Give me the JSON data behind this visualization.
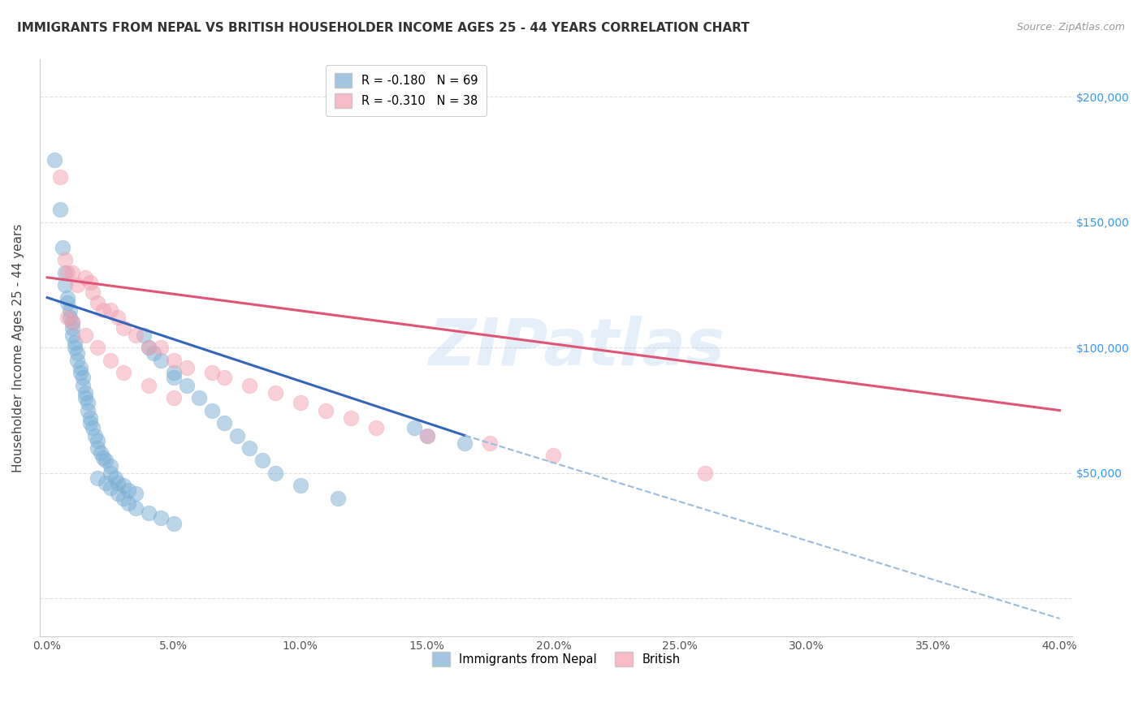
{
  "title": "IMMIGRANTS FROM NEPAL VS BRITISH HOUSEHOLDER INCOME AGES 25 - 44 YEARS CORRELATION CHART",
  "source": "Source: ZipAtlas.com",
  "ylabel": "Householder Income Ages 25 - 44 years",
  "ytick_vals": [
    0,
    50000,
    100000,
    150000,
    200000
  ],
  "ytick_labels_right": [
    "",
    "$50,000",
    "$100,000",
    "$150,000",
    "$200,000"
  ],
  "legend_r1": "R = -0.180",
  "legend_n1": "N = 69",
  "legend_r2": "R = -0.310",
  "legend_n2": "N = 38",
  "nepal_color": "#7BAFD4",
  "british_color": "#F4A0B0",
  "nepal_edge_color": "#5588BB",
  "british_edge_color": "#E07090",
  "nepal_line_color": "#3366BB",
  "british_line_color": "#E05575",
  "dashed_line_color": "#99BBDD",
  "watermark_text": "ZIPatlas",
  "nepal_x": [
    0.3,
    0.5,
    0.6,
    0.7,
    0.7,
    0.8,
    0.8,
    0.9,
    0.9,
    1.0,
    1.0,
    1.0,
    1.1,
    1.1,
    1.2,
    1.2,
    1.3,
    1.3,
    1.4,
    1.4,
    1.5,
    1.5,
    1.6,
    1.6,
    1.7,
    1.7,
    1.8,
    1.9,
    2.0,
    2.0,
    2.1,
    2.2,
    2.3,
    2.5,
    2.5,
    2.7,
    2.8,
    3.0,
    3.2,
    3.5,
    3.8,
    4.0,
    4.2,
    4.5,
    5.0,
    5.0,
    5.5,
    6.0,
    6.5,
    7.0,
    7.5,
    8.0,
    8.5,
    9.0,
    10.0,
    11.5,
    14.5,
    15.0,
    16.5,
    2.0,
    2.3,
    2.5,
    2.8,
    3.0,
    3.2,
    3.5,
    4.0,
    4.5,
    5.0
  ],
  "nepal_y": [
    175000,
    155000,
    140000,
    130000,
    125000,
    120000,
    118000,
    115000,
    112000,
    110000,
    108000,
    105000,
    102000,
    100000,
    98000,
    95000,
    92000,
    90000,
    88000,
    85000,
    82000,
    80000,
    78000,
    75000,
    72000,
    70000,
    68000,
    65000,
    63000,
    60000,
    58000,
    56000,
    55000,
    53000,
    50000,
    48000,
    46000,
    45000,
    43000,
    42000,
    105000,
    100000,
    98000,
    95000,
    90000,
    88000,
    85000,
    80000,
    75000,
    70000,
    65000,
    60000,
    55000,
    50000,
    45000,
    40000,
    68000,
    65000,
    62000,
    48000,
    46000,
    44000,
    42000,
    40000,
    38000,
    36000,
    34000,
    32000,
    30000
  ],
  "british_x": [
    0.5,
    0.7,
    0.8,
    1.0,
    1.2,
    1.5,
    1.7,
    1.8,
    2.0,
    2.2,
    2.5,
    2.8,
    3.0,
    3.5,
    4.0,
    4.5,
    5.0,
    5.5,
    6.5,
    7.0,
    8.0,
    9.0,
    10.0,
    11.0,
    12.0,
    13.0,
    15.0,
    17.5,
    20.0,
    26.0,
    0.8,
    1.0,
    1.5,
    2.0,
    2.5,
    3.0,
    4.0,
    5.0
  ],
  "british_y": [
    168000,
    135000,
    130000,
    130000,
    125000,
    128000,
    126000,
    122000,
    118000,
    115000,
    115000,
    112000,
    108000,
    105000,
    100000,
    100000,
    95000,
    92000,
    90000,
    88000,
    85000,
    82000,
    78000,
    75000,
    72000,
    68000,
    65000,
    62000,
    57000,
    50000,
    112000,
    110000,
    105000,
    100000,
    95000,
    90000,
    85000,
    80000
  ],
  "nepal_solid_x0": 0.0,
  "nepal_solid_x1": 16.5,
  "nepal_solid_y0": 120000,
  "nepal_solid_y1": 65000,
  "nepal_dash_x0": 16.5,
  "nepal_dash_x1": 40.0,
  "nepal_dash_y0": 65000,
  "nepal_dash_y1": -8000,
  "british_solid_x0": 0.0,
  "british_solid_x1": 40.0,
  "british_solid_y0": 128000,
  "british_solid_y1": 75000,
  "xlim": [
    -0.3,
    40.5
  ],
  "ylim": [
    -15000,
    215000
  ],
  "xtick_positions": [
    0,
    5,
    10,
    15,
    20,
    25,
    30,
    35,
    40
  ],
  "xtick_labels": [
    "0.0%",
    "5.0%",
    "10.0%",
    "15.0%",
    "20.0%",
    "25.0%",
    "30.0%",
    "35.0%",
    "40.0%"
  ],
  "background_color": "#FFFFFF",
  "grid_color": "#DDDDDD",
  "right_tick_color": "#3399FF"
}
